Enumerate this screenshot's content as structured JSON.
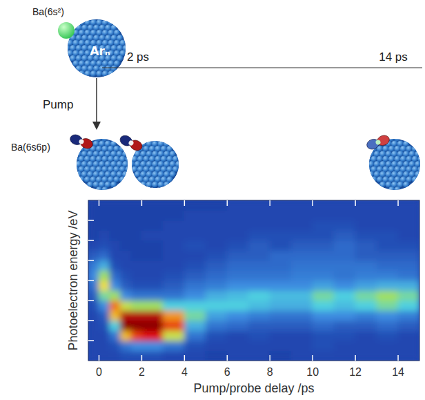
{
  "chart_data": {
    "type": "heatmap",
    "xlabel": "Pump/probe delay /ps",
    "ylabel": "Photoelectron  energy /eV",
    "xlim": [
      -0.5,
      15
    ],
    "xticks": [
      0,
      2,
      4,
      6,
      8,
      10,
      12,
      14
    ],
    "ylim": [
      0,
      8
    ],
    "yticks": [
      1,
      2,
      3,
      4,
      5,
      6,
      7
    ],
    "tick_labels": "x",
    "x_bins": [
      -0.5,
      0,
      0.5,
      1,
      1.5,
      2,
      3,
      4,
      5,
      6,
      7,
      8,
      9,
      10,
      11,
      12,
      13,
      14,
      15
    ],
    "y_bins": [
      0,
      0.5,
      1,
      1.5,
      2,
      2.5,
      3,
      3.5,
      4,
      4.5,
      5,
      5.5,
      6,
      6.5,
      7,
      7.5,
      8
    ],
    "cells": [
      [
        0.2,
        0.2,
        0.2,
        0.22,
        0.22,
        0.22,
        0.2,
        0.2,
        0.18,
        0.2,
        0.2,
        0.18,
        0.2,
        0.2,
        0.2,
        0.2,
        0.2,
        0.2
      ],
      [
        0.2,
        0.2,
        0.22,
        0.3,
        0.35,
        0.35,
        0.3,
        0.22,
        0.2,
        0.2,
        0.2,
        0.2,
        0.2,
        0.22,
        0.2,
        0.2,
        0.2,
        0.2
      ],
      [
        0.2,
        0.2,
        0.3,
        0.7,
        0.85,
        0.9,
        0.6,
        0.3,
        0.22,
        0.2,
        0.22,
        0.2,
        0.2,
        0.22,
        0.22,
        0.2,
        0.22,
        0.2
      ],
      [
        0.2,
        0.22,
        0.45,
        1.0,
        1.0,
        1.0,
        0.85,
        0.4,
        0.3,
        0.28,
        0.25,
        0.25,
        0.25,
        0.28,
        0.25,
        0.25,
        0.28,
        0.25
      ],
      [
        0.2,
        0.25,
        0.7,
        0.95,
        0.95,
        0.95,
        0.75,
        0.5,
        0.38,
        0.35,
        0.32,
        0.3,
        0.3,
        0.35,
        0.35,
        0.32,
        0.35,
        0.32
      ],
      [
        0.22,
        0.35,
        0.8,
        0.6,
        0.55,
        0.55,
        0.45,
        0.45,
        0.45,
        0.45,
        0.42,
        0.4,
        0.4,
        0.45,
        0.42,
        0.45,
        0.5,
        0.45
      ],
      [
        0.25,
        0.5,
        0.55,
        0.35,
        0.3,
        0.3,
        0.3,
        0.35,
        0.4,
        0.42,
        0.45,
        0.42,
        0.42,
        0.5,
        0.45,
        0.5,
        0.55,
        0.5
      ],
      [
        0.3,
        0.65,
        0.35,
        0.25,
        0.22,
        0.22,
        0.25,
        0.3,
        0.32,
        0.35,
        0.35,
        0.35,
        0.35,
        0.38,
        0.35,
        0.38,
        0.4,
        0.4
      ],
      [
        0.35,
        0.55,
        0.28,
        0.22,
        0.2,
        0.2,
        0.22,
        0.25,
        0.28,
        0.3,
        0.3,
        0.3,
        0.32,
        0.32,
        0.3,
        0.32,
        0.32,
        0.3
      ],
      [
        0.32,
        0.4,
        0.22,
        0.2,
        0.2,
        0.2,
        0.2,
        0.22,
        0.25,
        0.28,
        0.28,
        0.28,
        0.3,
        0.3,
        0.3,
        0.3,
        0.28,
        0.28
      ],
      [
        0.25,
        0.28,
        0.2,
        0.2,
        0.18,
        0.18,
        0.2,
        0.2,
        0.22,
        0.25,
        0.25,
        0.28,
        0.28,
        0.28,
        0.28,
        0.25,
        0.25,
        0.25
      ],
      [
        0.2,
        0.22,
        0.2,
        0.18,
        0.18,
        0.18,
        0.2,
        0.22,
        0.2,
        0.22,
        0.25,
        0.22,
        0.25,
        0.25,
        0.28,
        0.25,
        0.22,
        0.22
      ],
      [
        0.18,
        0.2,
        0.18,
        0.18,
        0.18,
        0.2,
        0.2,
        0.2,
        0.2,
        0.2,
        0.22,
        0.22,
        0.22,
        0.22,
        0.25,
        0.22,
        0.22,
        0.2
      ],
      [
        0.18,
        0.18,
        0.18,
        0.18,
        0.18,
        0.18,
        0.2,
        0.2,
        0.2,
        0.2,
        0.2,
        0.2,
        0.2,
        0.22,
        0.22,
        0.2,
        0.2,
        0.2
      ],
      [
        0.18,
        0.18,
        0.18,
        0.18,
        0.18,
        0.18,
        0.18,
        0.2,
        0.2,
        0.2,
        0.2,
        0.2,
        0.2,
        0.2,
        0.2,
        0.2,
        0.2,
        0.2
      ],
      [
        0.18,
        0.18,
        0.18,
        0.18,
        0.18,
        0.18,
        0.18,
        0.18,
        0.18,
        0.2,
        0.2,
        0.2,
        0.2,
        0.2,
        0.2,
        0.2,
        0.2,
        0.2
      ]
    ]
  },
  "schematic": {
    "initial_atom": "Ba(6s²)",
    "cluster": "Arₙ",
    "pump": "Pump",
    "excited_atom": "Ba(6s6p)",
    "time_labels": [
      "2 ps",
      "14 ps"
    ]
  }
}
